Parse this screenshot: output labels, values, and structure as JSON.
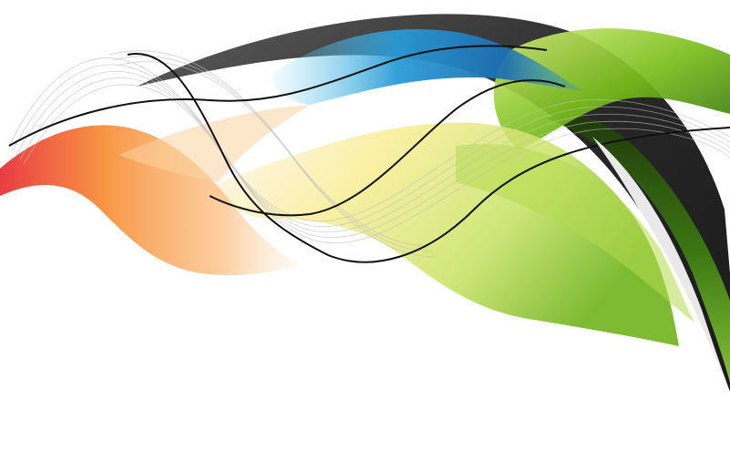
{
  "artwork": {
    "subject": "abstract-flowing-ribbons",
    "background_color": "#ffffff",
    "palette": {
      "red": "#e8323a",
      "orange": "#f7913a",
      "peach": "#fbd3a0",
      "yellow": "#f8ec8a",
      "light_green": "#c9e36a",
      "green": "#7bbf1c",
      "dark_green": "#3d7f0f",
      "blue": "#2a9ad6",
      "cyan": "#6fd4f0",
      "black": "#1c1c1c",
      "gray": "#bfbfbf"
    },
    "ribbon_names": [
      "black-arc-ribbon",
      "green-leaf-ribbon",
      "yellow-green-wave-ribbon",
      "blue-cyan-ribbon",
      "orange-red-ribbon",
      "gray-line-mesh",
      "thin-black-wave-line"
    ]
  }
}
